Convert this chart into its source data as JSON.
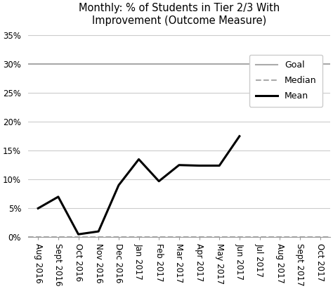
{
  "title": "Monthly: % of Students in Tier 2/3 With\nImprovement (Outcome Measure)",
  "x_labels": [
    "Aug 2016",
    "Sept 2016",
    "Oct 2016",
    "Nov 2016",
    "Dec 2016",
    "Jan 2017",
    "Feb 2017",
    "Mar 2017",
    "Apr 2017",
    "May 2017",
    "Jun 2017",
    "Jul 2017",
    "Aug 2017",
    "Sept 2017",
    "Oct 2017"
  ],
  "mean_values": [
    0.05,
    0.07,
    0.005,
    0.01,
    0.09,
    0.135,
    0.097,
    0.125,
    0.124,
    0.124,
    0.175,
    null,
    null,
    null,
    null
  ],
  "goal_value": 0.3,
  "median_value": 0.0,
  "ylim": [
    0,
    0.36
  ],
  "yticks": [
    0.0,
    0.05,
    0.1,
    0.15,
    0.2,
    0.25,
    0.3,
    0.35
  ],
  "ytick_labels": [
    "0%",
    "5%",
    "10%",
    "15%",
    "20%",
    "25%",
    "30%",
    "35%"
  ],
  "goal_color": "#aaaaaa",
  "median_color": "#aaaaaa",
  "mean_color": "#000000",
  "background_color": "#ffffff",
  "grid_color": "#cccccc",
  "title_fontsize": 10.5,
  "legend_fontsize": 9,
  "tick_fontsize": 8.5,
  "label_rotation": -90,
  "label_ha": "center"
}
